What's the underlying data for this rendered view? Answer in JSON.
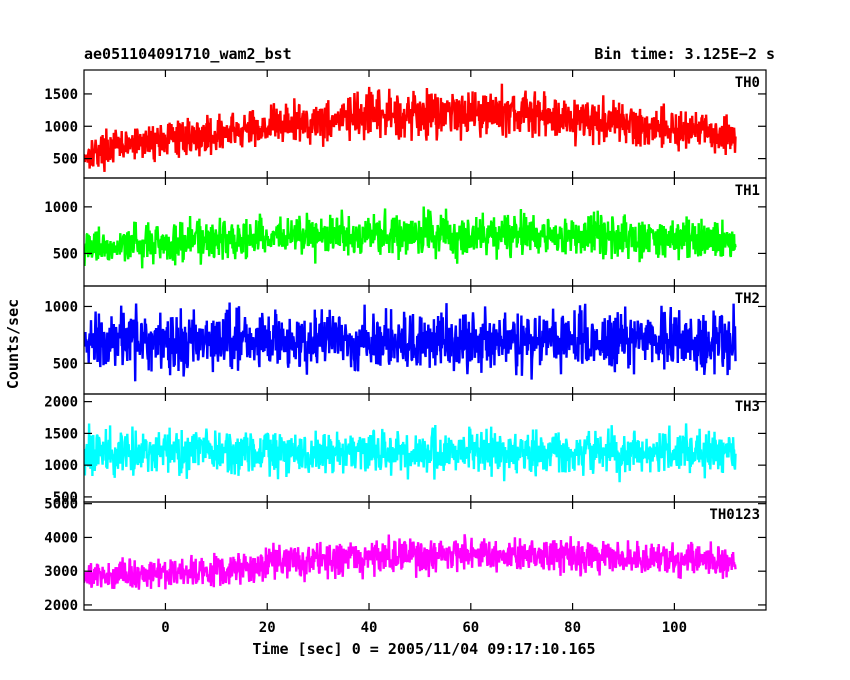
{
  "chart_data": {
    "type": "line",
    "title_left": "ae051104091710_wam2_bst",
    "title_right": "Bin time: 3.125E−2 s",
    "xlabel": "Time [sec] 0 = 2005/11/04 09:17:10.165",
    "ylabel": "Counts/sec",
    "xlim": [
      -16,
      118
    ],
    "x_ticks": [
      0,
      20,
      40,
      60,
      80,
      100
    ],
    "x_tick_labels": [
      "0",
      "20",
      "40",
      "60",
      "80",
      "100"
    ],
    "x_data_range": [
      -16,
      112
    ],
    "grid": false,
    "panels": [
      {
        "name": "TH0",
        "color": "#ff0000",
        "ylim": [
          200,
          1870
        ],
        "y_ticks": [
          500,
          1000,
          1500
        ],
        "y_tick_labels": [
          "500",
          "1000",
          "1500"
        ],
        "series": {
          "x": [
            -16,
            -10,
            0,
            10,
            15,
            20,
            30,
            40,
            50,
            60,
            70,
            80,
            90,
            100,
            112
          ],
          "values": [
            560,
            680,
            800,
            880,
            920,
            1020,
            1080,
            1150,
            1200,
            1230,
            1200,
            1120,
            1050,
            950,
            850
          ],
          "spread": [
            380,
            380,
            400,
            420,
            440,
            480,
            500,
            520,
            540,
            540,
            520,
            500,
            480,
            460,
            440
          ]
        }
      },
      {
        "name": "TH1",
        "color": "#00ff00",
        "ylim": [
          150,
          1310
        ],
        "y_ticks": [
          500,
          1000
        ],
        "y_tick_labels": [
          "500",
          "1000"
        ],
        "series": {
          "x": [
            -16,
            0,
            20,
            40,
            60,
            80,
            100,
            112
          ],
          "values": [
            560,
            620,
            680,
            700,
            700,
            690,
            660,
            640
          ],
          "spread": [
            280,
            300,
            330,
            350,
            350,
            340,
            320,
            300
          ]
        }
      },
      {
        "name": "TH2",
        "color": "#0000ff",
        "ylim": [
          230,
          1180
        ],
        "y_ticks": [
          500,
          1000
        ],
        "y_tick_labels": [
          "500",
          "1000"
        ],
        "series": {
          "x": [
            -16,
            112
          ],
          "values": [
            700,
            700
          ],
          "spread": [
            380,
            380
          ]
        }
      },
      {
        "name": "TH3",
        "color": "#00ffff",
        "ylim": [
          420,
          2120
        ],
        "y_ticks": [
          500,
          1000,
          1500,
          2000
        ],
        "y_tick_labels": [
          "500",
          "1000",
          "1500",
          "2000"
        ],
        "series": {
          "x": [
            -16,
            112
          ],
          "values": [
            1200,
            1200
          ],
          "spread": [
            500,
            500
          ]
        }
      },
      {
        "name": "TH0123",
        "color": "#ff00ff",
        "ylim": [
          1850,
          5050
        ],
        "y_ticks": [
          2000,
          3000,
          4000,
          5000
        ],
        "y_tick_labels": [
          "2000",
          "3000",
          "4000",
          "5000"
        ],
        "series": {
          "x": [
            -16,
            0,
            15,
            20,
            40,
            60,
            80,
            100,
            112
          ],
          "values": [
            2850,
            2950,
            3050,
            3250,
            3400,
            3500,
            3450,
            3350,
            3250
          ],
          "spread": [
            650,
            680,
            700,
            750,
            800,
            820,
            800,
            760,
            720
          ]
        }
      }
    ]
  }
}
